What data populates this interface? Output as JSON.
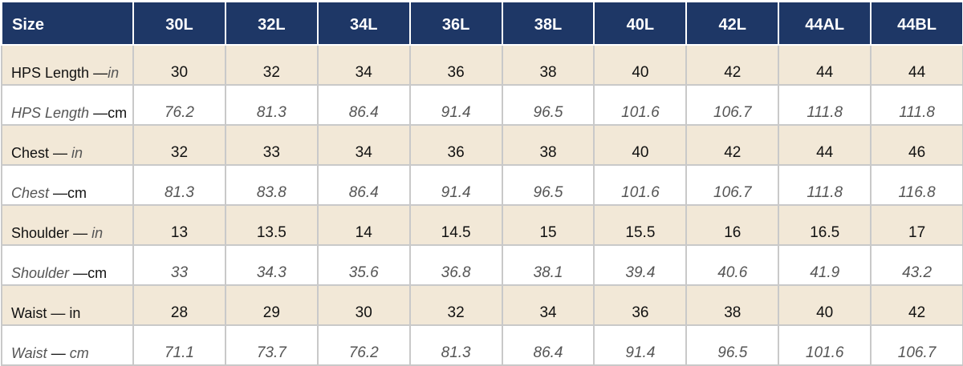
{
  "header": {
    "label": "Size",
    "sizes": [
      "30L",
      "32L",
      "34L",
      "36L",
      "38L",
      "40L",
      "42L",
      "44AL",
      "44BL"
    ]
  },
  "rows": [
    {
      "name": "HPS Length",
      "sep": " —",
      "unit": "in",
      "values": [
        "30",
        "32",
        "34",
        "36",
        "38",
        "40",
        "42",
        "44",
        "44"
      ]
    },
    {
      "name": "HPS Length",
      "sep": " —",
      "unit": "cm",
      "values": [
        "76.2",
        "81.3",
        "86.4",
        "91.4",
        "96.5",
        "101.6",
        "106.7",
        "111.8",
        "111.8"
      ]
    },
    {
      "name": "Chest",
      "sep": " — ",
      "unit": "in",
      "values": [
        "32",
        "33",
        "34",
        "36",
        "38",
        "40",
        "42",
        "44",
        "46"
      ]
    },
    {
      "name": "Chest",
      "sep": " —",
      "unit": "cm",
      "values": [
        "81.3",
        "83.8",
        "86.4",
        "91.4",
        "96.5",
        "101.6",
        "106.7",
        "111.8",
        "116.8"
      ]
    },
    {
      "name": "Shoulder",
      "sep": " — ",
      "unit": "in",
      "values": [
        "13",
        "13.5",
        "14",
        "14.5",
        "15",
        "15.5",
        "16",
        "16.5",
        "17"
      ]
    },
    {
      "name": "Shoulder",
      "sep": " —",
      "unit": "cm",
      "values": [
        "33",
        "34.3",
        "35.6",
        "36.8",
        "38.1",
        "39.4",
        "40.6",
        "41.9",
        "43.2"
      ]
    },
    {
      "name": "Waist",
      "sep": " — ",
      "unit": "in",
      "values": [
        "28",
        "29",
        "30",
        "32",
        "34",
        "36",
        "38",
        "40",
        "42"
      ]
    },
    {
      "name": "Waist",
      "sep": " — ",
      "unit": "cm",
      "values": [
        "71.1",
        "73.7",
        "76.2",
        "81.3",
        "86.4",
        "91.4",
        "96.5",
        "101.6",
        "106.7"
      ]
    }
  ]
}
